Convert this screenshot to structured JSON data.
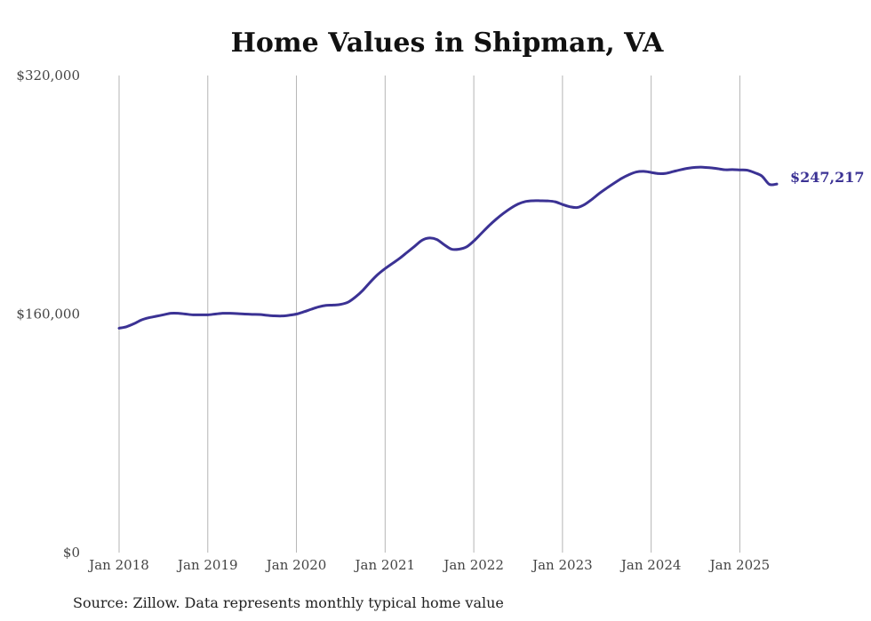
{
  "chart_data": {
    "type": "line",
    "title": "Home Values in Shipman, VA",
    "source": "Source: Zillow. Data represents monthly typical home value",
    "xlabel": "",
    "ylabel": "",
    "x_ticks": [
      "Jan 2018",
      "Jan 2019",
      "Jan 2020",
      "Jan 2021",
      "Jan 2022",
      "Jan 2023",
      "Jan 2024",
      "Jan 2025"
    ],
    "y_ticks": [
      "$0",
      "$160,000",
      "$320,000"
    ],
    "ylim": [
      0,
      320000
    ],
    "xlim": [
      "2018-01",
      "2025-06"
    ],
    "grid": "vertical",
    "line_color": "#3b3294",
    "end_label": "$247,217",
    "series": [
      {
        "x": [
          "2018-01",
          "2018-02",
          "2018-03",
          "2018-04",
          "2018-05",
          "2018-06",
          "2018-07",
          "2018-08",
          "2018-09",
          "2018-10",
          "2018-11",
          "2018-12",
          "2019-01",
          "2019-02",
          "2019-03",
          "2019-04",
          "2019-05",
          "2019-06",
          "2019-07",
          "2019-08",
          "2019-09",
          "2019-10",
          "2019-11",
          "2019-12",
          "2020-01",
          "2020-02",
          "2020-03",
          "2020-04",
          "2020-05",
          "2020-06",
          "2020-07",
          "2020-08",
          "2020-09",
          "2020-10",
          "2020-11",
          "2020-12",
          "2021-01",
          "2021-02",
          "2021-03",
          "2021-04",
          "2021-05",
          "2021-06",
          "2021-07",
          "2021-08",
          "2021-09",
          "2021-10",
          "2021-11",
          "2021-12",
          "2022-01",
          "2022-02",
          "2022-03",
          "2022-04",
          "2022-05",
          "2022-06",
          "2022-07",
          "2022-08",
          "2022-09",
          "2022-10",
          "2022-11",
          "2022-12",
          "2023-01",
          "2023-02",
          "2023-03",
          "2023-04",
          "2023-05",
          "2023-06",
          "2023-07",
          "2023-08",
          "2023-09",
          "2023-10",
          "2023-11",
          "2023-12",
          "2024-01",
          "2024-02",
          "2024-03",
          "2024-04",
          "2024-05",
          "2024-06",
          "2024-07",
          "2024-08",
          "2024-09",
          "2024-10",
          "2024-11",
          "2024-12",
          "2025-01",
          "2025-02",
          "2025-03",
          "2025-04",
          "2025-05",
          "2025-06"
        ],
        "values": [
          150500,
          151500,
          153500,
          156000,
          157500,
          158500,
          159500,
          160500,
          160500,
          160000,
          159500,
          159500,
          159500,
          160000,
          160500,
          160500,
          160300,
          160000,
          159800,
          159700,
          159200,
          158800,
          158700,
          159200,
          160000,
          161500,
          163200,
          164800,
          165800,
          166000,
          166500,
          168000,
          171500,
          176000,
          181500,
          186500,
          190500,
          194000,
          197500,
          201500,
          205500,
          209500,
          211000,
          210000,
          206500,
          203500,
          203500,
          205000,
          209000,
          214000,
          219000,
          223500,
          227500,
          231000,
          233800,
          235500,
          236000,
          236000,
          235900,
          235300,
          233500,
          232000,
          231500,
          233500,
          237000,
          241000,
          244500,
          247800,
          251000,
          253500,
          255300,
          255700,
          255000,
          254200,
          254400,
          255600,
          256800,
          257800,
          258400,
          258500,
          258100,
          257500,
          256800,
          256900,
          256700,
          256500,
          254800,
          252500,
          247000,
          247217
        ]
      }
    ]
  }
}
